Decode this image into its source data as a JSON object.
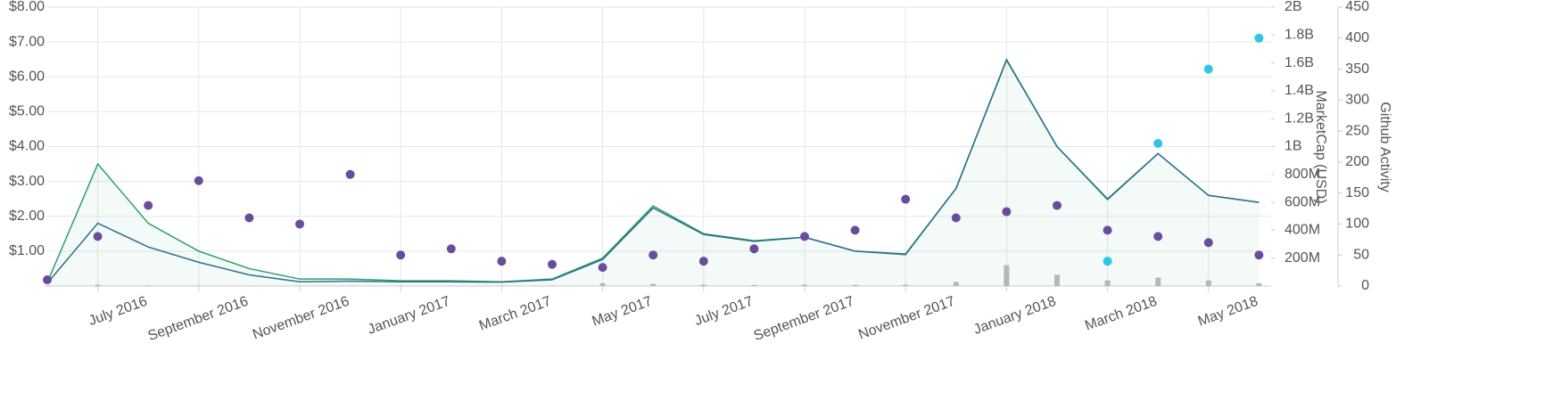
{
  "chart_data": {
    "type": "line",
    "x": [
      "2016-06",
      "2016-07",
      "2016-08",
      "2016-09",
      "2016-10",
      "2016-11",
      "2016-12",
      "2017-01",
      "2017-02",
      "2017-03",
      "2017-04",
      "2017-05",
      "2017-06",
      "2017-07",
      "2017-08",
      "2017-09",
      "2017-10",
      "2017-11",
      "2017-12",
      "2018-01",
      "2018-02",
      "2018-03",
      "2018-04",
      "2018-05",
      "2018-06"
    ],
    "xticks": [
      {
        "value": "2016-07",
        "label": "July 2016"
      },
      {
        "value": "2016-09",
        "label": "September 2016"
      },
      {
        "value": "2016-11",
        "label": "November 2016"
      },
      {
        "value": "2017-01",
        "label": "January 2017"
      },
      {
        "value": "2017-03",
        "label": "March 2017"
      },
      {
        "value": "2017-05",
        "label": "May 2017"
      },
      {
        "value": "2017-07",
        "label": "July 2017"
      },
      {
        "value": "2017-09",
        "label": "September 2017"
      },
      {
        "value": "2017-11",
        "label": "November 2017"
      },
      {
        "value": "2018-01",
        "label": "January 2018"
      },
      {
        "value": "2018-03",
        "label": "March 2018"
      },
      {
        "value": "2018-05",
        "label": "May 2018"
      }
    ],
    "ylim": [
      0,
      8
    ],
    "yticks": [
      {
        "value": 1,
        "label": "$1.00"
      },
      {
        "value": 2,
        "label": "$2.00"
      },
      {
        "value": 3,
        "label": "$3.00"
      },
      {
        "value": 4,
        "label": "$4.00"
      },
      {
        "value": 5,
        "label": "$5.00"
      },
      {
        "value": 6,
        "label": "$6.00"
      },
      {
        "value": 7,
        "label": "$7.00"
      },
      {
        "value": 8,
        "label": "$8.00"
      }
    ],
    "y2_label": "MarketCap (USD)",
    "y2lim": [
      0,
      2000000000
    ],
    "y2ticks": [
      {
        "value": 200000000,
        "label": "200M"
      },
      {
        "value": 400000000,
        "label": "400M"
      },
      {
        "value": 600000000,
        "label": "600M"
      },
      {
        "value": 800000000,
        "label": "800M"
      },
      {
        "value": 1000000000,
        "label": "1B"
      },
      {
        "value": 1200000000,
        "label": "1.2B"
      },
      {
        "value": 1400000000,
        "label": "1.4B"
      },
      {
        "value": 1600000000,
        "label": "1.6B"
      },
      {
        "value": 1800000000,
        "label": "1.8B"
      },
      {
        "value": 2000000000,
        "label": "2B"
      }
    ],
    "y3_label": "Github Activity",
    "y3lim": [
      0,
      450
    ],
    "y3ticks": [
      0,
      50,
      100,
      150,
      200,
      250,
      300,
      350,
      400,
      450
    ],
    "grid": true,
    "series": [
      {
        "color": "#2e9e6b",
        "kind": "area",
        "axis": "y",
        "values": [
          0.1,
          3.5,
          1.8,
          1.0,
          0.5,
          0.2,
          0.2,
          0.15,
          0.15,
          0.12,
          0.2,
          0.8,
          2.3,
          1.5,
          1.3,
          1.4,
          1.0,
          0.9,
          2.8,
          6.5,
          4.0,
          2.5,
          3.8,
          2.6,
          2.4
        ]
      },
      {
        "color": "#2b6f8f",
        "kind": "line",
        "axis": "y2",
        "values": [
          20000000,
          450000000,
          280000000,
          170000000,
          80000000,
          30000000,
          35000000,
          30000000,
          30000000,
          28000000,
          45000000,
          190000000,
          560000000,
          370000000,
          320000000,
          350000000,
          250000000,
          230000000,
          700000000,
          1620000000,
          1000000000,
          620000000,
          950000000,
          650000000,
          600000000
        ]
      },
      {
        "color": "#6a4c9c",
        "kind": "dots",
        "axis": "y3",
        "values": [
          10,
          80,
          130,
          170,
          110,
          100,
          180,
          50,
          60,
          40,
          35,
          30,
          50,
          40,
          60,
          80,
          90,
          140,
          110,
          120,
          130,
          90,
          80,
          70,
          50
        ]
      },
      {
        "color": "#2ec5e8",
        "kind": "dots",
        "axis": "y3",
        "values": [
          null,
          null,
          null,
          null,
          null,
          null,
          null,
          null,
          null,
          null,
          null,
          null,
          null,
          null,
          null,
          null,
          null,
          null,
          null,
          null,
          null,
          40,
          230,
          350,
          400
        ]
      },
      {
        "color": "#bbbbbb",
        "kind": "bars",
        "axis": "y2",
        "values": [
          5000000,
          10000000,
          5000000,
          3000000,
          2000000,
          2000000,
          2000000,
          2000000,
          2000000,
          2000000,
          3000000,
          20000000,
          15000000,
          10000000,
          8000000,
          10000000,
          8000000,
          10000000,
          30000000,
          150000000,
          80000000,
          40000000,
          60000000,
          40000000,
          20000000
        ]
      }
    ]
  }
}
